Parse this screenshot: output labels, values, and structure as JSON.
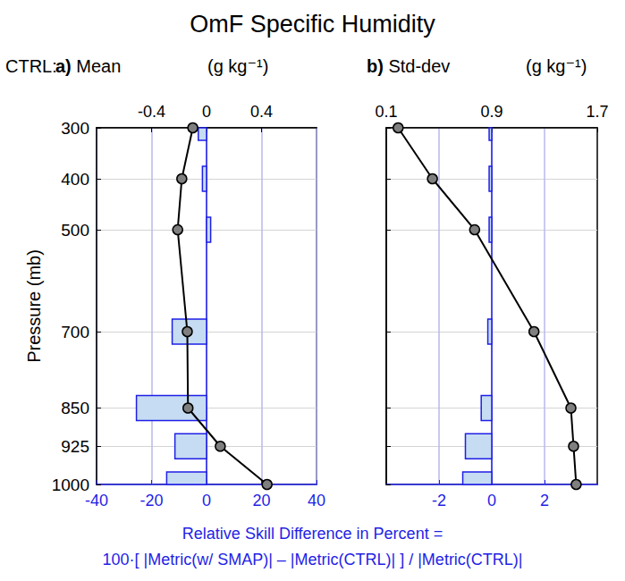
{
  "chart_data": [
    {
      "type": "bar",
      "title": "OmF Specific Humidity",
      "annotations": [
        "CTRL:",
        "Relative Skill Difference in Percent =",
        "100·[ |Metric(w/ SMAP)| – |Metric(CTRL)| ] / |Metric(CTRL)|"
      ],
      "subtitle": "a) Mean",
      "x2label": "(g kg⁻¹)",
      "ylabel": "Pressure (mb)",
      "orientation": "horizontal",
      "grid": true,
      "y": [
        300,
        400,
        500,
        700,
        850,
        925,
        1000
      ],
      "ylim": [
        1000,
        300
      ],
      "yticks": [
        300,
        400,
        500,
        700,
        850,
        925,
        1000
      ],
      "xlim": [
        -40,
        40
      ],
      "xticks": [
        -40,
        -20,
        0,
        20,
        40
      ],
      "x2lim": [
        -0.8,
        0.8
      ],
      "x2ticks": [
        -0.4,
        0,
        0.4
      ],
      "series": [
        {
          "type": "bar",
          "color": "#c6dcf2",
          "values": [
            -3,
            -1.5,
            1.5,
            -12.5,
            -25.5,
            -11.5,
            -14.5
          ]
        },
        {
          "type": "line",
          "color": "#000000",
          "marker": "circle",
          "axis": "x2",
          "values": [
            -0.1,
            -0.18,
            -0.21,
            -0.14,
            -0.135,
            0.1,
            0.44
          ]
        }
      ]
    },
    {
      "type": "bar",
      "subtitle": "b) Std-dev",
      "x2label": "(g kg⁻¹)",
      "orientation": "horizontal",
      "grid": true,
      "tick_labels": "x",
      "y": [
        300,
        400,
        500,
        700,
        850,
        925,
        1000
      ],
      "ylim": [
        1000,
        300
      ],
      "yticks": [
        300,
        400,
        500,
        700,
        850,
        925,
        1000
      ],
      "xlim": [
        -4,
        4
      ],
      "xticks": [
        -2,
        0,
        2
      ],
      "x2lim": [
        0.1,
        1.7
      ],
      "x2ticks": [
        0.1,
        0.9,
        1.7
      ],
      "series": [
        {
          "type": "bar",
          "color": "#c6dcf2",
          "values": [
            -0.1,
            -0.1,
            -0.1,
            -0.15,
            -0.4,
            -1.0,
            -1.1
          ]
        },
        {
          "type": "line",
          "color": "#000000",
          "marker": "circle",
          "axis": "x2",
          "values": [
            0.19,
            0.45,
            0.77,
            1.22,
            1.5,
            1.52,
            1.54
          ]
        }
      ]
    }
  ]
}
